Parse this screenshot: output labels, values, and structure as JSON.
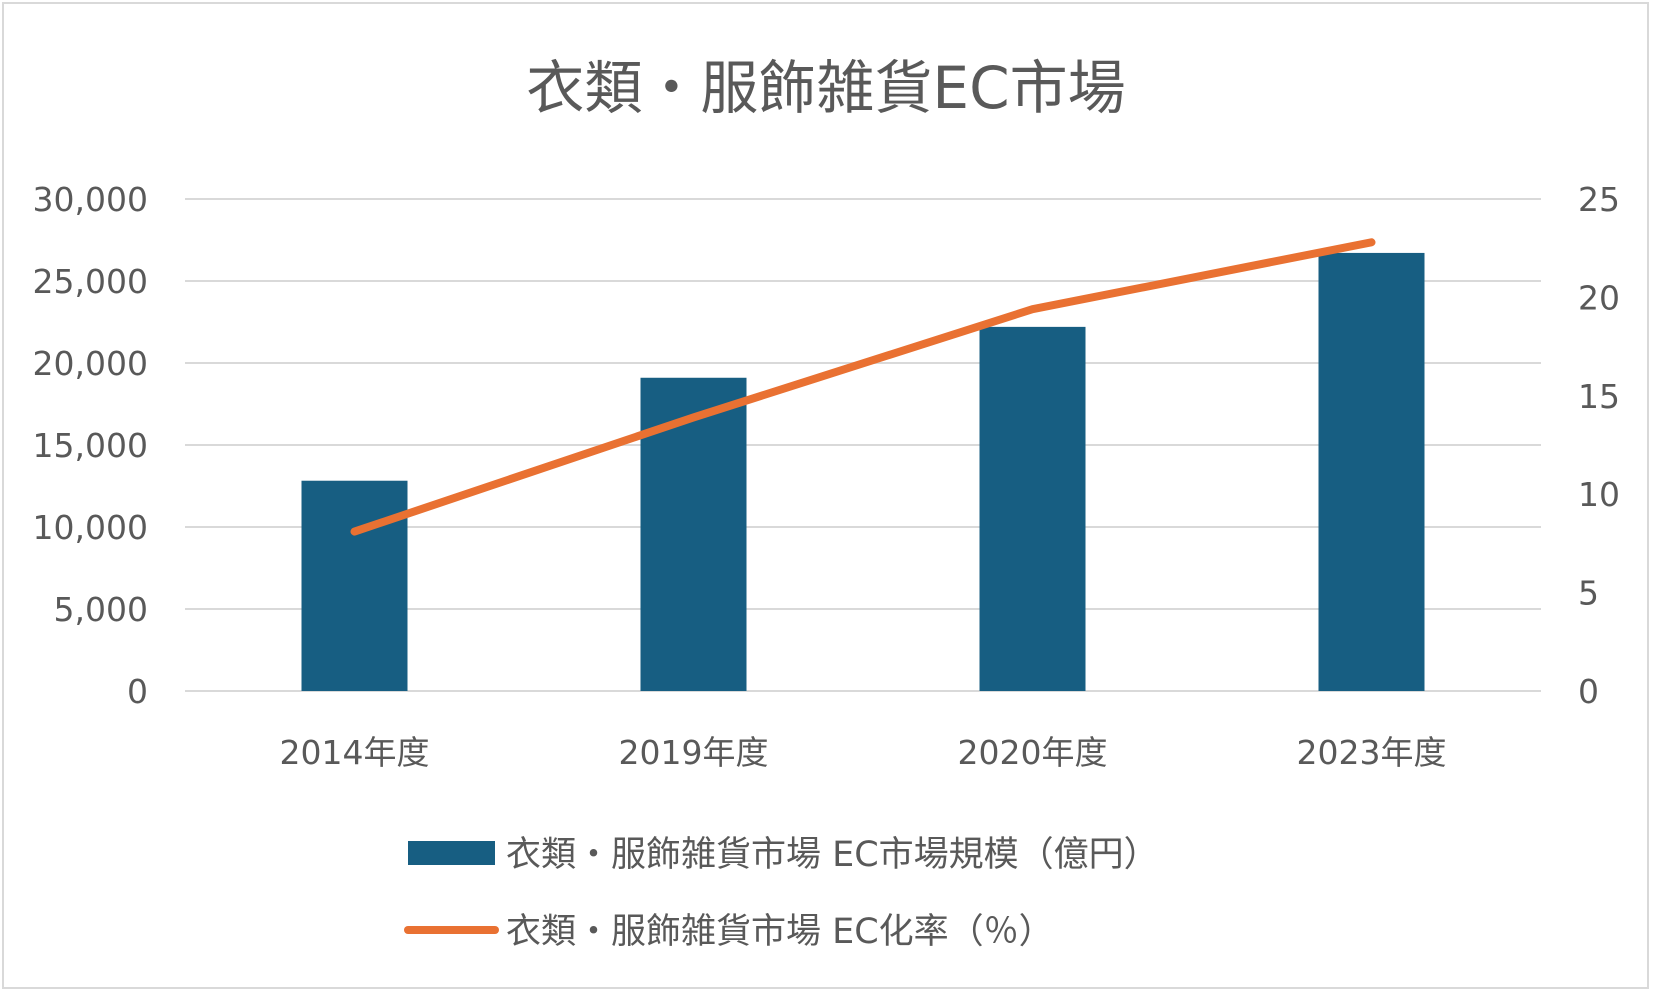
{
  "chart_data": {
    "type": "bar",
    "title": "衣類・服飾雑貨EC市場",
    "categories": [
      "2014年度",
      "2019年度",
      "2020年度",
      "2023年度"
    ],
    "series": [
      {
        "name": "衣類・服飾雑貨市場 EC市場規模（億円）",
        "type": "bar",
        "axis": "left",
        "values": [
          12822,
          19100,
          22203,
          26712
        ],
        "color": "#175E82"
      },
      {
        "name": "衣類・服飾雑貨市場 EC化率（％）",
        "type": "line",
        "axis": "right",
        "values": [
          8.1,
          13.9,
          19.4,
          22.8
        ],
        "color": "#E97132"
      }
    ],
    "y_left": {
      "ylim": [
        0,
        30000
      ],
      "ticks": [
        0,
        5000,
        10000,
        15000,
        20000,
        25000,
        30000
      ],
      "tick_labels": [
        "0",
        "5,000",
        "10,000",
        "15,000",
        "20,000",
        "25,000",
        "30,000"
      ]
    },
    "y_right": {
      "ylim": [
        0,
        25
      ],
      "ticks": [
        0,
        5,
        10,
        15,
        20,
        25
      ],
      "tick_labels": [
        "0",
        "5",
        "10",
        "15",
        "20",
        "25"
      ]
    },
    "grid": true,
    "legend_position": "bottom",
    "gridline_color": "#d9d9d9",
    "text_color": "#595959"
  }
}
